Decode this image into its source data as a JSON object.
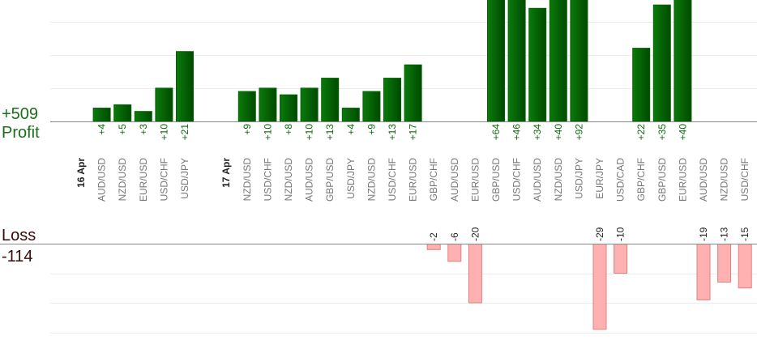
{
  "chart_data": {
    "type": "profit-loss-bar",
    "profit": {
      "title": "Profit",
      "total": 509,
      "total_label": "+509",
      "ylim": [
        0,
        36.5
      ],
      "yticks": [
        10,
        20,
        30
      ],
      "color": "#006400"
    },
    "loss": {
      "title": "Loss",
      "total": -114,
      "ylim": [
        -32.6,
        0
      ],
      "yticks": [
        -10,
        -20,
        -30
      ],
      "color": "#ffb0b0"
    },
    "grid": true,
    "groups": [
      {
        "date": "16 Apr",
        "trades": [
          {
            "pair": "AUD/USD",
            "value": 4,
            "value_label": "+4"
          },
          {
            "pair": "NZD/USD",
            "value": 5,
            "value_label": "+5"
          },
          {
            "pair": "EUR/USD",
            "value": 3,
            "value_label": "+3"
          },
          {
            "pair": "USD/CHF",
            "value": 10,
            "value_label": "+10"
          },
          {
            "pair": "USD/JPY",
            "value": 21,
            "value_label": "+21"
          }
        ]
      },
      {
        "date": "17 Apr",
        "trades": [
          {
            "pair": "NZD/USD",
            "value": 9,
            "value_label": "+9"
          },
          {
            "pair": "USD/CHF",
            "value": 10,
            "value_label": "+10"
          },
          {
            "pair": "NZD/USD",
            "value": 8,
            "value_label": "+8"
          },
          {
            "pair": "AUD/USD",
            "value": 10,
            "value_label": "+10"
          },
          {
            "pair": "GBP/USD",
            "value": 13,
            "value_label": "+13"
          },
          {
            "pair": "USD/JPY",
            "value": 4,
            "value_label": "+4"
          },
          {
            "pair": "NZD/USD",
            "value": 9,
            "value_label": "+9"
          },
          {
            "pair": "USD/CHF",
            "value": 13,
            "value_label": "+13"
          },
          {
            "pair": "EUR/USD",
            "value": 17,
            "value_label": "+17"
          },
          {
            "pair": "GBP/CHF",
            "value": -2
          },
          {
            "pair": "AUD/USD",
            "value": -6
          },
          {
            "pair": "EUR/USD",
            "value": -20
          },
          {
            "pair": "GBP/USD",
            "value": 64,
            "value_label": "+64"
          },
          {
            "pair": "USD/CHF",
            "value": 46,
            "value_label": "+46"
          },
          {
            "pair": "AUD/USD",
            "value": 34,
            "value_label": "+34"
          },
          {
            "pair": "NZD/USD",
            "value": 40,
            "value_label": "+40"
          },
          {
            "pair": "USD/JPY",
            "value": 92,
            "value_label": "+92"
          },
          {
            "pair": "EUR/JPY",
            "value": -29
          },
          {
            "pair": "USD/CAD",
            "value": -10
          },
          {
            "pair": "GBP/CHF",
            "value": 22,
            "value_label": "+22"
          },
          {
            "pair": "GBP/USD",
            "value": 35,
            "value_label": "+35"
          },
          {
            "pair": "EUR/USD",
            "value": 40,
            "value_label": "+40"
          },
          {
            "pair": "AUD/USD",
            "value": -19
          },
          {
            "pair": "NZD/USD",
            "value": -13
          },
          {
            "pair": "USD/CHF",
            "value": -15
          }
        ]
      }
    ]
  }
}
